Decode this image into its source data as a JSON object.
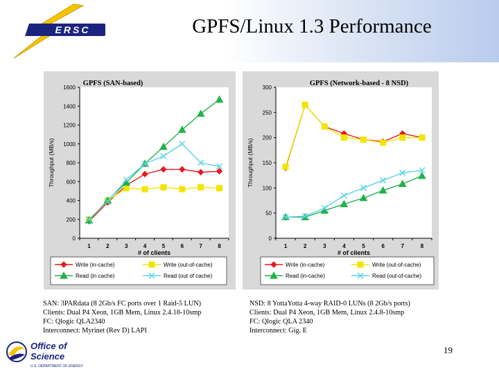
{
  "slide": {
    "title": "GPFS/Linux 1.3 Performance",
    "page_number": "19",
    "logo_nersc_text": "ERSC",
    "logo_doe_text_1": "Office of",
    "logo_doe_text_2": "Science",
    "logo_doe_text_3": "U.S. DEPARTMENT OF ENERGY"
  },
  "colors": {
    "write_in_cache": "#e41a1c",
    "write_out_of_cache": "#f2e600",
    "read_in_cache": "#22b14c",
    "read_out_of_cache": "#5bd4e8",
    "panel_bg": "#d9d9d9",
    "plot_bg": "#ffffff",
    "logo_gold": "#f5c400",
    "logo_navy": "#1a237e"
  },
  "captions": {
    "left": [
      "SAN: 3PARdata (8 2Gb/s FC ports over 1 Raid-5 LUN)",
      "Clients: Dual P4 Xeon, 1GB Mem, Linux 2.4.18-10smp",
      "FC: Qlogic QLA2340",
      "Interconnect: Myrinet (Rev D) LAPI"
    ],
    "right": [
      "NSD: 8 YottaYotta 4-way RAID-0 LUNs (8 2Gb/s ports)",
      "Clients: Dual P4 Xeon, 1GB Mem, Linux 2.4.8-10smp",
      "FC: Qlogic QLA 2340",
      "Interconnect: Gig. E"
    ]
  },
  "chart_data": [
    {
      "type": "line",
      "title": "GPFS (SAN-based)",
      "xlabel": "# of clients",
      "ylabel": "Throughput (MB/s)",
      "x": [
        1,
        2,
        3,
        4,
        5,
        6,
        7,
        8
      ],
      "ylim": [
        0,
        1600
      ],
      "yticks": [
        0,
        200,
        400,
        600,
        800,
        1000,
        1200,
        1400,
        1600
      ],
      "grid": false,
      "legend": "bottom",
      "series": [
        {
          "name": "Write (in-cache)",
          "marker": "diamond",
          "color_key": "write_in_cache",
          "values": [
            180,
            380,
            560,
            680,
            730,
            730,
            700,
            710
          ]
        },
        {
          "name": "Write (out-of-cache)",
          "marker": "square",
          "color_key": "write_out_of_cache",
          "values": [
            200,
            400,
            530,
            520,
            540,
            520,
            540,
            530
          ]
        },
        {
          "name": "Read (in cache)",
          "marker": "triangle",
          "color_key": "read_in_cache",
          "values": [
            190,
            400,
            590,
            790,
            970,
            1150,
            1320,
            1470
          ]
        },
        {
          "name": "Read (out of cache)",
          "marker": "x",
          "color_key": "read_out_of_cache",
          "values": [
            200,
            390,
            620,
            790,
            870,
            1000,
            800,
            760
          ]
        }
      ]
    },
    {
      "type": "line",
      "title": "GPFS (Network-based - 8 NSD)",
      "xlabel": "# of clients",
      "ylabel": "Throughput (MB/s)",
      "x": [
        1,
        2,
        3,
        4,
        5,
        6,
        7,
        8
      ],
      "ylim": [
        0,
        300
      ],
      "yticks": [
        0,
        50,
        100,
        150,
        200,
        250,
        300
      ],
      "grid": false,
      "legend": "bottom",
      "series": [
        {
          "name": "Write (in-cache)",
          "marker": "diamond",
          "color_key": "write_in_cache",
          "values": [
            140,
            265,
            222,
            208,
            196,
            192,
            208,
            200
          ]
        },
        {
          "name": "Write (out-of-cache)",
          "marker": "square",
          "color_key": "write_out_of_cache",
          "values": [
            142,
            265,
            222,
            200,
            196,
            190,
            200,
            200
          ]
        },
        {
          "name": "Read (in-cache)",
          "marker": "triangle",
          "color_key": "read_in_cache",
          "values": [
            42,
            42,
            55,
            68,
            80,
            95,
            108,
            124
          ]
        },
        {
          "name": "Read (out-of-cache)",
          "marker": "x",
          "color_key": "read_out_of_cache",
          "values": [
            42,
            44,
            60,
            85,
            100,
            115,
            130,
            135
          ]
        }
      ]
    }
  ]
}
